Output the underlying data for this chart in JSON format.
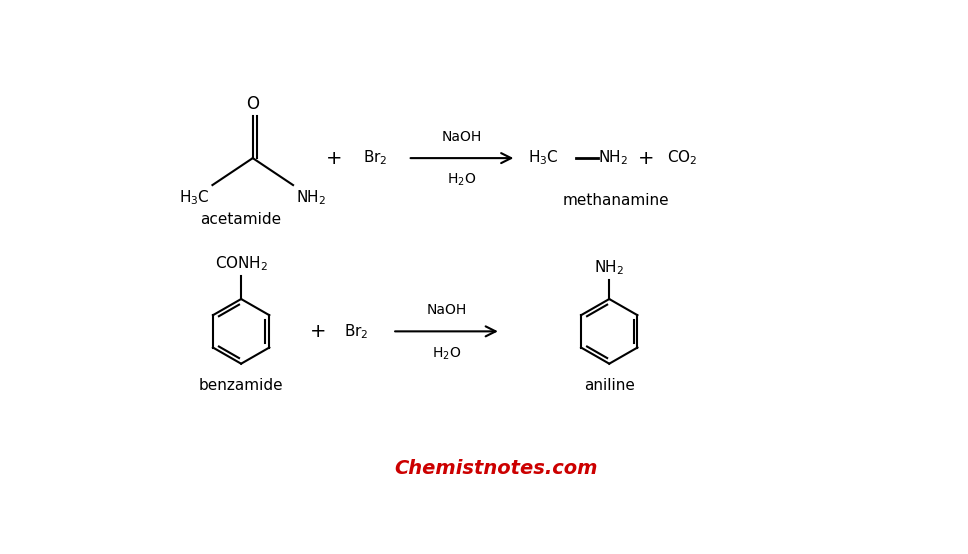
{
  "background_color": "#ffffff",
  "title_text": "Chemistnotes.com",
  "title_color": "#cc0000",
  "title_fontsize": 14,
  "reaction1": {
    "acetamide_label": "acetamide",
    "br2_label": "Br$_2$",
    "naoh_label": "NaOH",
    "h2o_label": "H$_2$O",
    "h3c": "H$_3$C",
    "nh2": "NH$_2$",
    "o": "O",
    "co2": "CO$_2$",
    "methanamine_label": "methanamine"
  },
  "reaction2": {
    "conh2": "CONH$_2$",
    "benzamide_label": "benzamide",
    "br2_label": "Br$_2$",
    "naoh_label": "NaOH",
    "h2o_label": "H$_2$O",
    "nh2": "NH$_2$",
    "aniline_label": "aniline"
  }
}
